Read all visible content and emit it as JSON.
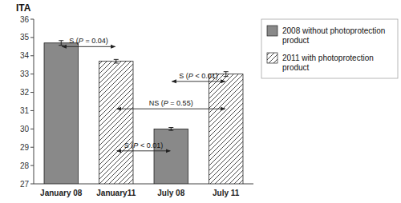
{
  "chart_data": {
    "type": "bar",
    "ylabel": "ITA",
    "categories": [
      "January 08",
      "January11",
      "July 08",
      "July 11"
    ],
    "series": [
      {
        "name": "2008 without photoprotection\nproduct",
        "color": "#898989",
        "values": [
          34.7,
          null,
          30.0,
          null
        ],
        "errors": [
          0.13,
          null,
          0.08,
          null
        ]
      },
      {
        "name": "2011 with photoprotection\nproduct",
        "color": "#ffffff",
        "values": [
          null,
          33.7,
          null,
          33.0
        ],
        "errors": [
          null,
          0.1,
          null,
          0.13
        ]
      }
    ],
    "ylim": [
      27,
      36
    ],
    "yticks": [
      27,
      28,
      29,
      30,
      31,
      32,
      33,
      34,
      35,
      36
    ],
    "grid": false,
    "legend": "upper right",
    "annotations": [
      {
        "text": "S (P = 0.04)",
        "from": "January 08",
        "to": "January11",
        "y": 34.5
      },
      {
        "text": "S (P < 0.01)",
        "from": "January11",
        "to": "July 08",
        "y": 28.8
      },
      {
        "text": "NS (P = 0.55)",
        "from": "January11",
        "to": "July 11",
        "y": 31.1
      },
      {
        "text": "S (P < 0.01)",
        "from": "July 08",
        "to": "July 11",
        "y": 32.6
      }
    ]
  }
}
